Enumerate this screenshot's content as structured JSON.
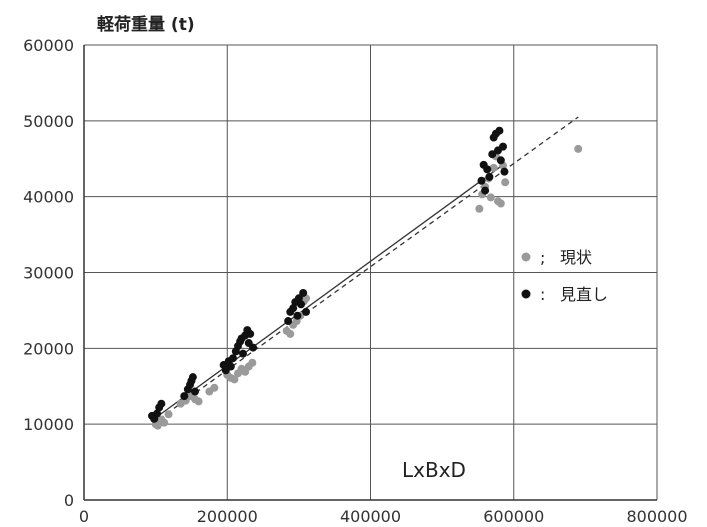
{
  "chart_data": {
    "type": "scatter",
    "title": "",
    "ylabel": "軽荷重量 (t)",
    "xlabel": "",
    "annotation": "LxBxD",
    "xlim": [
      0,
      800000
    ],
    "ylim": [
      0,
      60000
    ],
    "x_ticks": [
      "0",
      "200000",
      "400000",
      "600000",
      "800000"
    ],
    "y_ticks": [
      "0",
      "10000",
      "20000",
      "30000",
      "40000",
      "50000",
      "60000"
    ],
    "grid": true,
    "legend_position": "right",
    "series": [
      {
        "name": "現状",
        "color": "#9a9a9a",
        "trendline": {
          "style": "dashed",
          "x": [
            95000,
            690000
          ],
          "y": [
            10000,
            50500
          ]
        },
        "points": [
          [
            100000,
            10000
          ],
          [
            103000,
            9800
          ],
          [
            108000,
            10600
          ],
          [
            112000,
            10200
          ],
          [
            118000,
            11300
          ],
          [
            135000,
            12700
          ],
          [
            142000,
            13100
          ],
          [
            148000,
            13700
          ],
          [
            155000,
            13300
          ],
          [
            160000,
            13000
          ],
          [
            175000,
            14300
          ],
          [
            182000,
            14800
          ],
          [
            200000,
            16500
          ],
          [
            205000,
            16100
          ],
          [
            210000,
            15900
          ],
          [
            215000,
            16700
          ],
          [
            220000,
            17300
          ],
          [
            225000,
            16900
          ],
          [
            230000,
            17600
          ],
          [
            235000,
            18100
          ],
          [
            283000,
            22300
          ],
          [
            288000,
            21900
          ],
          [
            292000,
            23100
          ],
          [
            297000,
            23600
          ],
          [
            302000,
            24300
          ],
          [
            307000,
            26200
          ],
          [
            310000,
            26600
          ],
          [
            552000,
            38400
          ],
          [
            556000,
            40300
          ],
          [
            560000,
            41300
          ],
          [
            565000,
            42400
          ],
          [
            568000,
            39900
          ],
          [
            572000,
            43800
          ],
          [
            575000,
            45300
          ],
          [
            578000,
            39400
          ],
          [
            582000,
            39100
          ],
          [
            585000,
            44100
          ],
          [
            588000,
            41900
          ],
          [
            690000,
            46300
          ]
        ]
      },
      {
        "name": "見直し",
        "color": "#111111",
        "trendline": {
          "style": "solid",
          "x": [
            95000,
            585000
          ],
          "y": [
            10500,
            44200
          ]
        },
        "points": [
          [
            95000,
            11100
          ],
          [
            98000,
            10700
          ],
          [
            102000,
            11400
          ],
          [
            105000,
            12200
          ],
          [
            108000,
            12700
          ],
          [
            140000,
            13700
          ],
          [
            145000,
            14600
          ],
          [
            148000,
            15200
          ],
          [
            150000,
            15700
          ],
          [
            152000,
            16200
          ],
          [
            155000,
            14300
          ],
          [
            195000,
            17800
          ],
          [
            198000,
            17100
          ],
          [
            202000,
            18300
          ],
          [
            205000,
            17600
          ],
          [
            208000,
            18700
          ],
          [
            212000,
            19600
          ],
          [
            215000,
            20300
          ],
          [
            218000,
            20900
          ],
          [
            220000,
            21300
          ],
          [
            222000,
            19300
          ],
          [
            225000,
            21700
          ],
          [
            228000,
            22400
          ],
          [
            230000,
            20700
          ],
          [
            232000,
            21900
          ],
          [
            236000,
            20100
          ],
          [
            285000,
            23600
          ],
          [
            288000,
            24800
          ],
          [
            292000,
            25300
          ],
          [
            295000,
            26100
          ],
          [
            298000,
            24300
          ],
          [
            300000,
            26600
          ],
          [
            303000,
            25800
          ],
          [
            306000,
            27300
          ],
          [
            310000,
            24800
          ],
          [
            555000,
            42100
          ],
          [
            558000,
            44200
          ],
          [
            560000,
            40800
          ],
          [
            563000,
            43600
          ],
          [
            566000,
            42600
          ],
          [
            570000,
            45600
          ],
          [
            572000,
            47800
          ],
          [
            575000,
            48300
          ],
          [
            578000,
            46100
          ],
          [
            580000,
            48700
          ],
          [
            582000,
            44800
          ],
          [
            585000,
            46600
          ],
          [
            587000,
            43300
          ]
        ]
      }
    ]
  }
}
